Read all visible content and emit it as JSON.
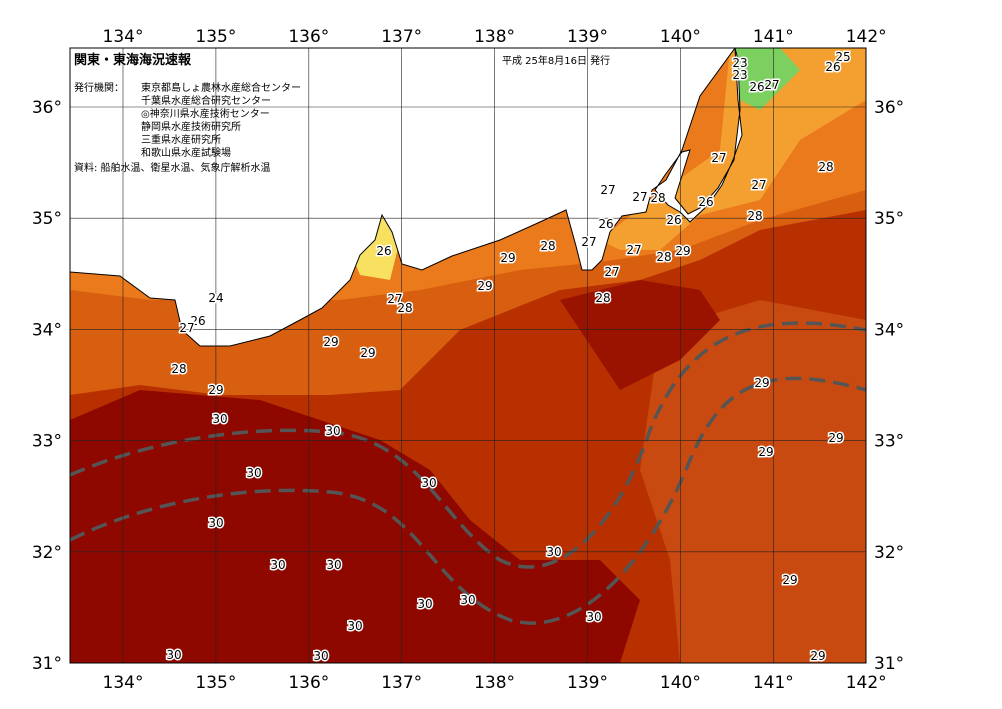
{
  "header": {
    "title": "関東・東海海況速報",
    "date": "平成 25年8月16日 発行",
    "issuer_label": "発行機関：",
    "issuers": [
      "東京都島しょ農林水産総合センター",
      "千葉県水産総合研究センター",
      "◎神奈川県水産技術センター",
      "静岡県水産技術研究所",
      "三重県水産研究所",
      "和歌山県水産試験場"
    ],
    "source": "資料: 船舶水温、衛星水温、気象庁解析水温"
  },
  "map": {
    "lon_labels": [
      "134°",
      "135°",
      "136°",
      "137°",
      "138°",
      "139°",
      "140°",
      "141°",
      "142°"
    ],
    "lat_labels": [
      "36°",
      "35°",
      "34°",
      "33°",
      "32°",
      "31°"
    ],
    "contour_labels": [
      "25",
      "23",
      "26",
      "23",
      "26",
      "27",
      "27",
      "28",
      "27",
      "26",
      "28",
      "27",
      "27",
      "28",
      "26",
      "26",
      "27",
      "28",
      "29",
      "27",
      "28",
      "29",
      "26",
      "27",
      "28",
      "29",
      "27",
      "28",
      "24",
      "26",
      "27",
      "29",
      "29",
      "28",
      "29",
      "30",
      "29",
      "30",
      "29",
      "29",
      "30",
      "30",
      "30",
      "30",
      "30",
      "30",
      "29",
      "30",
      "30",
      "30",
      "30",
      "30",
      "30",
      "29"
    ]
  }
}
